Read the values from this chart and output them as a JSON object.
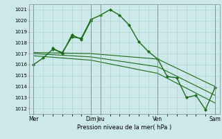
{
  "background_color": "#cce8e8",
  "plot_bg_color": "#cce8e8",
  "grid_color": "#aacccc",
  "line_color": "#1a6b1a",
  "xlabel": "Pression niveau de la mer( hPa )",
  "ylim": [
    1011.5,
    1021.5
  ],
  "yticks": [
    1012,
    1013,
    1014,
    1015,
    1016,
    1017,
    1018,
    1019,
    1020,
    1021
  ],
  "xtick_labels": [
    "Mer",
    "Dim",
    "Jeu",
    "Ven",
    "Sam"
  ],
  "xtick_positions": [
    0,
    6,
    7,
    13,
    19
  ],
  "vlines": [
    0,
    6,
    7,
    13,
    19
  ],
  "series": [
    {
      "x": [
        0,
        1,
        2,
        3,
        4,
        5,
        6,
        7,
        8,
        9,
        10,
        11,
        12,
        13,
        14,
        15,
        16,
        17,
        18,
        19
      ],
      "y": [
        1016.0,
        1016.6,
        1017.4,
        1017.1,
        1018.5,
        1018.4,
        1020.1,
        1020.5,
        1021.0,
        1020.5,
        1019.6,
        1018.1,
        1017.2,
        1016.5,
        1014.9,
        1014.8,
        1013.0,
        1013.2,
        1011.9,
        1013.9
      ],
      "marker": "D",
      "markersize": 2.0,
      "linewidth": 1.0
    },
    {
      "x": [
        2,
        3,
        4,
        5,
        6
      ],
      "y": [
        1017.5,
        1017.0,
        1018.7,
        1018.3,
        1020.0
      ],
      "marker": "D",
      "markersize": 2.0,
      "linewidth": 1.0
    },
    {
      "x": [
        0,
        6,
        13,
        19
      ],
      "y": [
        1017.1,
        1017.0,
        1016.5,
        1014.0
      ],
      "marker": null,
      "linewidth": 0.8
    },
    {
      "x": [
        0,
        6,
        13,
        19
      ],
      "y": [
        1017.0,
        1016.7,
        1015.8,
        1013.2
      ],
      "marker": null,
      "linewidth": 0.8
    },
    {
      "x": [
        0,
        6,
        13,
        19
      ],
      "y": [
        1016.8,
        1016.4,
        1015.2,
        1012.5
      ],
      "marker": null,
      "linewidth": 0.8
    }
  ]
}
